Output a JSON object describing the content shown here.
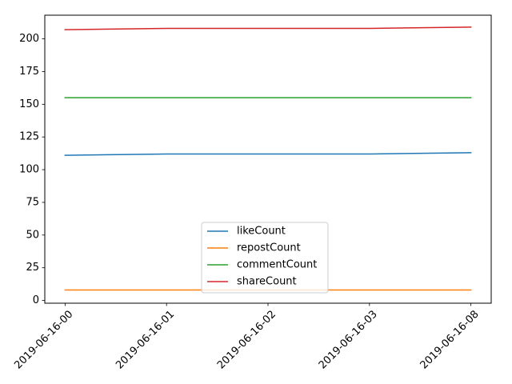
{
  "chart_data": {
    "type": "line",
    "title": "",
    "xlabel": "",
    "ylabel": "",
    "categories": [
      "2019-06-16-00",
      "2019-06-16-01",
      "2019-06-16-02",
      "2019-06-16-03",
      "2019-06-16-08"
    ],
    "ylim": [
      -2.1,
      218.1
    ],
    "yticks": [
      0,
      25,
      50,
      75,
      100,
      125,
      150,
      175,
      200
    ],
    "grid": false,
    "legend_position": "lower center",
    "series": [
      {
        "name": "likeCount",
        "color": "#1f77b4",
        "values": [
          111,
          112,
          112,
          112,
          113
        ]
      },
      {
        "name": "repostCount",
        "color": "#ff7f0e",
        "values": [
          8,
          8,
          8,
          8,
          8
        ]
      },
      {
        "name": "commentCount",
        "color": "#2ca02c",
        "values": [
          155,
          155,
          155,
          155,
          155
        ]
      },
      {
        "name": "shareCount",
        "color": "#d62728",
        "values": [
          207,
          208,
          208,
          208,
          209
        ]
      }
    ]
  }
}
